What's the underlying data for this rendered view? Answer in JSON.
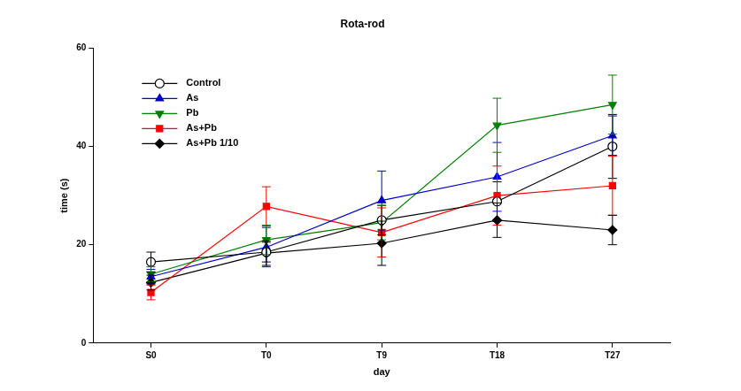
{
  "chart_data": {
    "type": "line",
    "title": "Rota-rod",
    "x_label": "day",
    "y_label": "time (s)",
    "categories": [
      "S0",
      "T0",
      "T9",
      "T18",
      "T27"
    ],
    "ylim": [
      0,
      60
    ],
    "yticks": [
      0,
      20,
      40,
      60
    ],
    "grid": false,
    "legend": "upper left",
    "series": [
      {
        "name": "Control",
        "color": "#000000",
        "marker": "circle_open",
        "values": [
          16.5,
          18.5,
          25,
          28.8,
          40
        ],
        "errors": [
          2,
          2,
          3,
          4,
          6.5
        ]
      },
      {
        "name": "As",
        "color": "#0000cc",
        "marker": "triangle_up",
        "values": [
          13.5,
          19.5,
          29,
          33.8,
          42.2
        ],
        "errors": [
          1.5,
          4,
          6,
          7,
          4
        ]
      },
      {
        "name": "Pb",
        "color": "#008000",
        "marker": "triangle_down",
        "values": [
          14,
          21,
          24.5,
          44.3,
          48.5
        ],
        "errors": [
          1.5,
          3,
          3.5,
          5.5,
          6
        ]
      },
      {
        "name": "As+Pb",
        "color": "#ff0000",
        "marker": "square",
        "values": [
          10.3,
          27.8,
          22.5,
          30,
          32
        ],
        "errors": [
          1.5,
          4,
          5,
          6,
          6
        ]
      },
      {
        "name": "As+Pb 1/10",
        "color": "#000000",
        "marker": "diamond",
        "values": [
          12.3,
          18.3,
          20.3,
          25,
          23
        ],
        "errors": [
          1.5,
          2.5,
          4.5,
          3.5,
          3
        ]
      }
    ]
  }
}
